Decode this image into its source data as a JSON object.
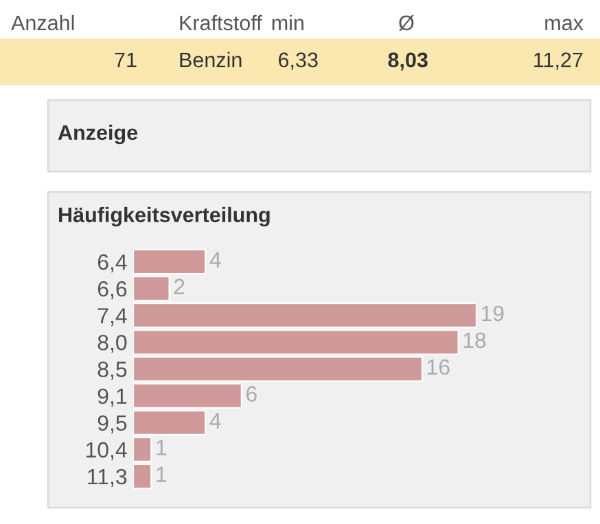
{
  "chart_data": {
    "type": "bar",
    "orientation": "horizontal",
    "title": "Häufigkeitsverteilung",
    "categories": [
      "6,4",
      "6,6",
      "7,4",
      "8,0",
      "8,5",
      "9,1",
      "9,5",
      "10,4",
      "11,3"
    ],
    "values": [
      4,
      2,
      19,
      18,
      16,
      6,
      4,
      1,
      1
    ],
    "color": "#d09a9a",
    "data_labels": true,
    "tick_labels": "y",
    "grid": false,
    "legend": false,
    "annotations": [
      "Anzahl",
      "Kraftstoff",
      "min",
      "Ø",
      "max",
      "71",
      "Benzin",
      "6,33",
      "8,03",
      "11,27",
      "Anzeige"
    ]
  }
}
